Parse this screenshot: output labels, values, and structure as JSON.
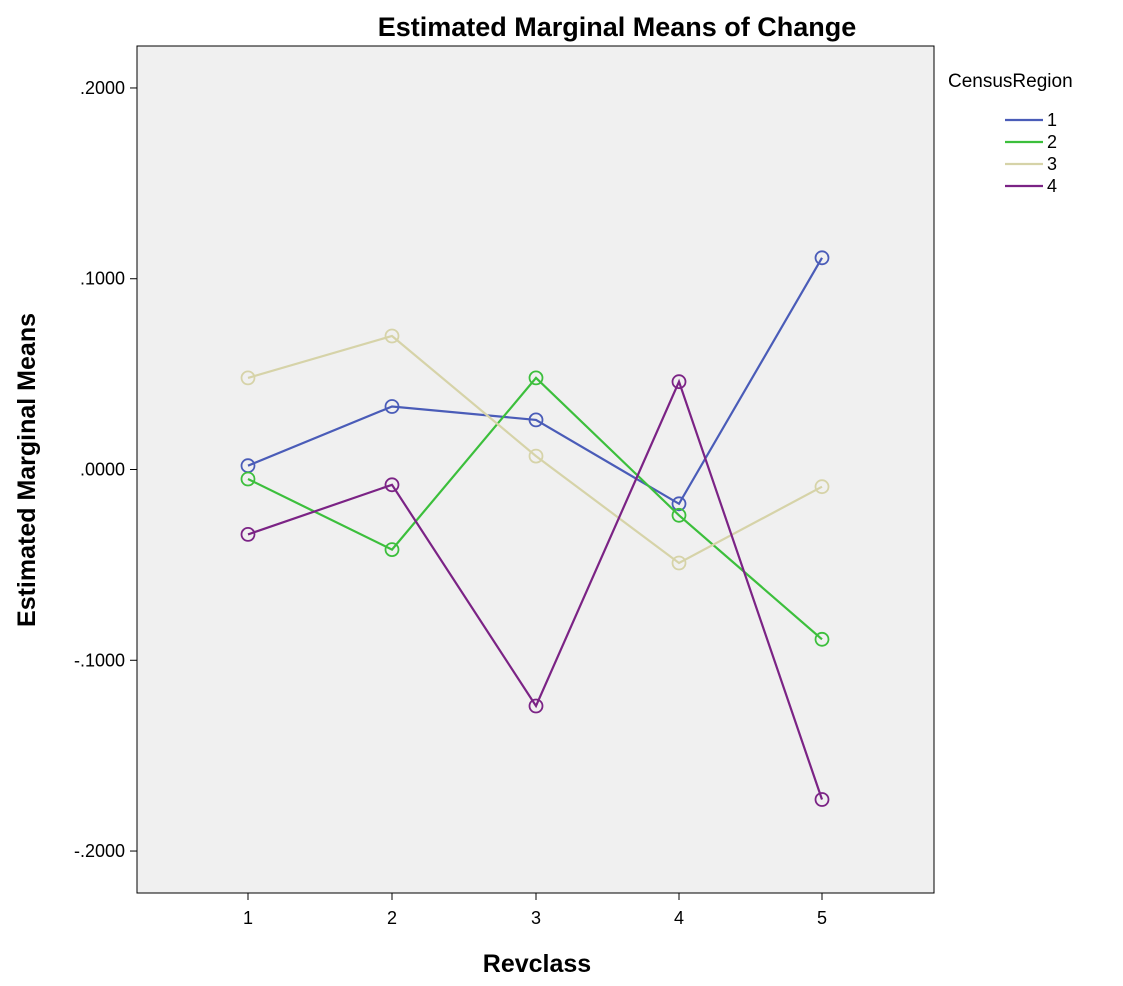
{
  "chart_data": {
    "type": "line",
    "title": "Estimated Marginal Means of Change",
    "xlabel": "Revclass",
    "ylabel": "Estimated Marginal Means",
    "categories": [
      "1",
      "2",
      "3",
      "4",
      "5"
    ],
    "ylim": [
      -0.222,
      0.222
    ],
    "yticks": [
      0.2,
      0.1,
      0.0,
      -0.1,
      -0.2
    ],
    "ytick_labels": [
      ".2000",
      ".1000",
      ".0000",
      "-.1000",
      "-.2000"
    ],
    "grid": false,
    "background": "#f0f0f0",
    "marker": "open-circle",
    "legend": {
      "title": "CensusRegion",
      "position": "top-right, outside plot"
    },
    "series": [
      {
        "name": "1",
        "color": "#4a5cb8",
        "values": [
          0.002,
          0.033,
          0.026,
          -0.018,
          0.111
        ]
      },
      {
        "name": "2",
        "color": "#3cbf3c",
        "values": [
          -0.005,
          -0.042,
          0.048,
          -0.024,
          -0.089
        ]
      },
      {
        "name": "3",
        "color": "#d6d3a8",
        "values": [
          0.048,
          0.07,
          0.007,
          -0.049,
          -0.009
        ]
      },
      {
        "name": "4",
        "color": "#7b2385",
        "values": [
          -0.034,
          -0.008,
          -0.124,
          0.046,
          -0.173
        ]
      }
    ]
  }
}
